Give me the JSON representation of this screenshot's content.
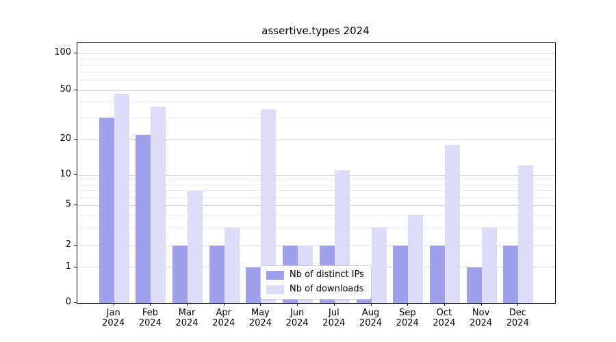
{
  "chart_data": {
    "type": "bar",
    "title": "assertive.types 2024",
    "scale": "symlog",
    "grid": true,
    "legend_position": "lower-center",
    "categories": [
      "Jan",
      "Feb",
      "Mar",
      "Apr",
      "May",
      "Jun",
      "Jul",
      "Aug",
      "Sep",
      "Oct",
      "Nov",
      "Dec"
    ],
    "year_label": "2024",
    "yticks": [
      0,
      1,
      2,
      5,
      10,
      20,
      50,
      100
    ],
    "ylim": [
      0,
      110
    ],
    "series": [
      {
        "name": "Nb of distinct IPs",
        "color": "#a0a0ec",
        "values": [
          30,
          22,
          2,
          2,
          1,
          2,
          2,
          1,
          2,
          2,
          1,
          2
        ]
      },
      {
        "name": "Nb of downloads",
        "color": "#dcdcf8",
        "values": [
          47,
          37,
          7,
          3,
          35,
          2,
          11,
          3,
          4,
          18,
          3,
          12
        ]
      }
    ]
  }
}
